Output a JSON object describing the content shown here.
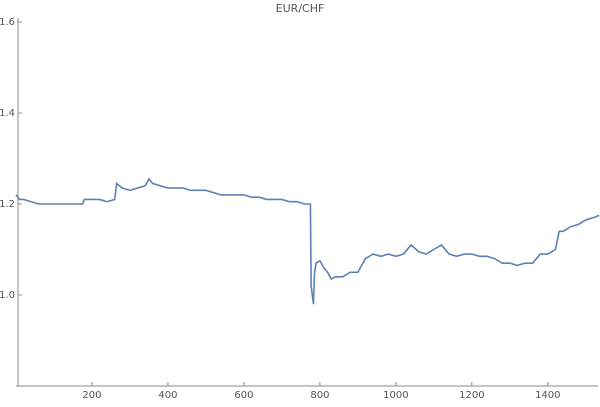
{
  "chart_data": {
    "type": "line",
    "title": "EUR/CHF",
    "x": [
      0,
      10,
      20,
      40,
      60,
      100,
      150,
      175,
      180,
      200,
      220,
      240,
      260,
      265,
      280,
      300,
      320,
      340,
      350,
      360,
      380,
      400,
      420,
      440,
      460,
      480,
      500,
      520,
      540,
      560,
      580,
      600,
      620,
      640,
      660,
      680,
      700,
      720,
      740,
      760,
      775,
      777,
      780,
      783,
      786,
      790,
      800,
      810,
      820,
      830,
      840,
      860,
      880,
      900,
      920,
      940,
      960,
      980,
      1000,
      1020,
      1040,
      1060,
      1080,
      1100,
      1120,
      1140,
      1160,
      1180,
      1200,
      1220,
      1240,
      1260,
      1280,
      1300,
      1320,
      1340,
      1360,
      1380,
      1400,
      1420,
      1430,
      1440,
      1460,
      1480,
      1500,
      1520,
      1535
    ],
    "series": [
      {
        "color": "#5e81b5",
        "values": [
          1.22,
          1.21,
          1.21,
          1.205,
          1.2,
          1.2,
          1.2,
          1.2,
          1.21,
          1.21,
          1.21,
          1.205,
          1.21,
          1.245,
          1.235,
          1.23,
          1.235,
          1.24,
          1.255,
          1.245,
          1.24,
          1.235,
          1.235,
          1.235,
          1.23,
          1.23,
          1.23,
          1.225,
          1.22,
          1.22,
          1.22,
          1.22,
          1.215,
          1.215,
          1.21,
          1.21,
          1.21,
          1.205,
          1.205,
          1.2,
          1.2,
          1.02,
          1.0,
          0.98,
          1.05,
          1.07,
          1.075,
          1.06,
          1.05,
          1.035,
          1.04,
          1.04,
          1.05,
          1.05,
          1.08,
          1.09,
          1.085,
          1.09,
          1.085,
          1.09,
          1.11,
          1.095,
          1.09,
          1.1,
          1.11,
          1.09,
          1.085,
          1.09,
          1.09,
          1.085,
          1.085,
          1.08,
          1.07,
          1.07,
          1.065,
          1.07,
          1.07,
          1.09,
          1.09,
          1.1,
          1.14,
          1.14,
          1.15,
          1.155,
          1.165,
          1.17,
          1.175
        ]
      }
    ],
    "xlim": [
      0,
      1540
    ],
    "ylim": [
      0.8,
      1.6
    ],
    "xticks": [
      200,
      400,
      600,
      800,
      1000,
      1200,
      1400
    ],
    "yticks": [
      {
        "value": 1,
        "label": "1.0"
      },
      1.2,
      1.4,
      1.6
    ]
  }
}
